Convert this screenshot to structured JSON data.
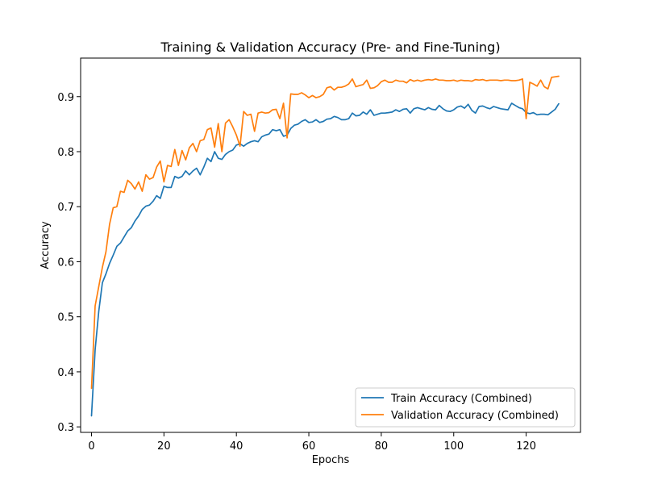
{
  "chart_data": {
    "type": "line",
    "title": "Training & Validation Accuracy (Pre- and Fine-Tuning)",
    "xlabel": "Epochs",
    "ylabel": "Accuracy",
    "xlim": [
      -3,
      135
    ],
    "ylim": [
      0.29,
      0.97
    ],
    "xticks": [
      0,
      20,
      40,
      60,
      80,
      100,
      120
    ],
    "yticks": [
      0.3,
      0.4,
      0.5,
      0.6,
      0.7,
      0.8,
      0.9
    ],
    "grid": false,
    "legend_position": "lower-right",
    "series": [
      {
        "name": "Train Accuracy (Combined)",
        "color": "#1f77b4",
        "x": [
          0,
          1,
          2,
          3,
          4,
          5,
          6,
          7,
          8,
          9,
          10,
          11,
          12,
          13,
          14,
          15,
          16,
          17,
          18,
          19,
          20,
          21,
          22,
          23,
          24,
          25,
          26,
          27,
          28,
          29,
          30,
          31,
          32,
          33,
          34,
          35,
          36,
          37,
          38,
          39,
          40,
          41,
          42,
          43,
          44,
          45,
          46,
          47,
          48,
          49,
          50,
          51,
          52,
          53,
          54,
          55,
          56,
          57,
          58,
          59,
          60,
          61,
          62,
          63,
          64,
          65,
          66,
          67,
          68,
          69,
          70,
          71,
          72,
          73,
          74,
          75,
          76,
          77,
          78,
          79,
          80,
          81,
          82,
          83,
          84,
          85,
          86,
          87,
          88,
          89,
          90,
          91,
          92,
          93,
          94,
          95,
          96,
          97,
          98,
          99,
          100,
          101,
          102,
          103,
          104,
          105,
          106,
          107,
          108,
          109,
          110,
          111,
          112,
          113,
          114,
          115,
          116,
          117,
          118,
          119,
          120,
          121,
          122,
          123,
          124,
          125,
          126,
          127,
          128,
          129
        ],
        "y": [
          0.32,
          0.44,
          0.51,
          0.562,
          0.578,
          0.597,
          0.612,
          0.628,
          0.634,
          0.645,
          0.656,
          0.662,
          0.674,
          0.683,
          0.695,
          0.701,
          0.703,
          0.71,
          0.72,
          0.715,
          0.737,
          0.735,
          0.735,
          0.755,
          0.752,
          0.755,
          0.765,
          0.758,
          0.765,
          0.77,
          0.758,
          0.772,
          0.788,
          0.782,
          0.8,
          0.788,
          0.786,
          0.795,
          0.8,
          0.803,
          0.812,
          0.814,
          0.81,
          0.815,
          0.818,
          0.82,
          0.818,
          0.827,
          0.83,
          0.832,
          0.84,
          0.838,
          0.84,
          0.828,
          0.83,
          0.842,
          0.848,
          0.85,
          0.855,
          0.858,
          0.853,
          0.854,
          0.858,
          0.853,
          0.855,
          0.859,
          0.86,
          0.864,
          0.862,
          0.858,
          0.858,
          0.86,
          0.87,
          0.865,
          0.866,
          0.872,
          0.868,
          0.876,
          0.866,
          0.868,
          0.87,
          0.87,
          0.871,
          0.872,
          0.876,
          0.873,
          0.877,
          0.878,
          0.87,
          0.878,
          0.88,
          0.878,
          0.876,
          0.88,
          0.877,
          0.876,
          0.884,
          0.878,
          0.874,
          0.873,
          0.876,
          0.881,
          0.883,
          0.879,
          0.886,
          0.875,
          0.87,
          0.882,
          0.883,
          0.88,
          0.878,
          0.882,
          0.88,
          0.878,
          0.877,
          0.876,
          0.888,
          0.884,
          0.88,
          0.878,
          0.871,
          0.869,
          0.871,
          0.867,
          0.868,
          0.868,
          0.867,
          0.872,
          0.877,
          0.887
        ]
      },
      {
        "name": "Validation Accuracy (Combined)",
        "color": "#ff7f0e",
        "x": [
          0,
          1,
          2,
          3,
          4,
          5,
          6,
          7,
          8,
          9,
          10,
          11,
          12,
          13,
          14,
          15,
          16,
          17,
          18,
          19,
          20,
          21,
          22,
          23,
          24,
          25,
          26,
          27,
          28,
          29,
          30,
          31,
          32,
          33,
          34,
          35,
          36,
          37,
          38,
          39,
          40,
          41,
          42,
          43,
          44,
          45,
          46,
          47,
          48,
          49,
          50,
          51,
          52,
          53,
          54,
          55,
          56,
          57,
          58,
          59,
          60,
          61,
          62,
          63,
          64,
          65,
          66,
          67,
          68,
          69,
          70,
          71,
          72,
          73,
          74,
          75,
          76,
          77,
          78,
          79,
          80,
          81,
          82,
          83,
          84,
          85,
          86,
          87,
          88,
          89,
          90,
          91,
          92,
          93,
          94,
          95,
          96,
          97,
          98,
          99,
          100,
          101,
          102,
          103,
          104,
          105,
          106,
          107,
          108,
          109,
          110,
          111,
          112,
          113,
          114,
          115,
          116,
          117,
          118,
          119,
          120,
          121,
          122,
          123,
          124,
          125,
          126,
          127,
          128,
          129
        ],
        "y": [
          0.37,
          0.52,
          0.555,
          0.59,
          0.618,
          0.668,
          0.698,
          0.7,
          0.728,
          0.726,
          0.748,
          0.742,
          0.732,
          0.745,
          0.728,
          0.758,
          0.75,
          0.753,
          0.772,
          0.783,
          0.745,
          0.775,
          0.773,
          0.804,
          0.775,
          0.802,
          0.785,
          0.807,
          0.815,
          0.8,
          0.82,
          0.822,
          0.84,
          0.843,
          0.808,
          0.851,
          0.8,
          0.852,
          0.858,
          0.845,
          0.83,
          0.81,
          0.873,
          0.866,
          0.868,
          0.837,
          0.87,
          0.872,
          0.87,
          0.871,
          0.876,
          0.877,
          0.86,
          0.888,
          0.825,
          0.905,
          0.904,
          0.904,
          0.907,
          0.903,
          0.898,
          0.902,
          0.898,
          0.9,
          0.904,
          0.916,
          0.918,
          0.912,
          0.917,
          0.917,
          0.919,
          0.923,
          0.932,
          0.918,
          0.92,
          0.922,
          0.93,
          0.915,
          0.916,
          0.92,
          0.927,
          0.93,
          0.926,
          0.926,
          0.93,
          0.928,
          0.928,
          0.925,
          0.931,
          0.928,
          0.93,
          0.928,
          0.93,
          0.931,
          0.93,
          0.932,
          0.93,
          0.93,
          0.929,
          0.929,
          0.93,
          0.928,
          0.93,
          0.929,
          0.929,
          0.928,
          0.931,
          0.93,
          0.931,
          0.929,
          0.93,
          0.93,
          0.93,
          0.929,
          0.93,
          0.93,
          0.929,
          0.929,
          0.93,
          0.932,
          0.86,
          0.926,
          0.923,
          0.919,
          0.93,
          0.918,
          0.914,
          0.935,
          0.936,
          0.937
        ]
      }
    ]
  }
}
